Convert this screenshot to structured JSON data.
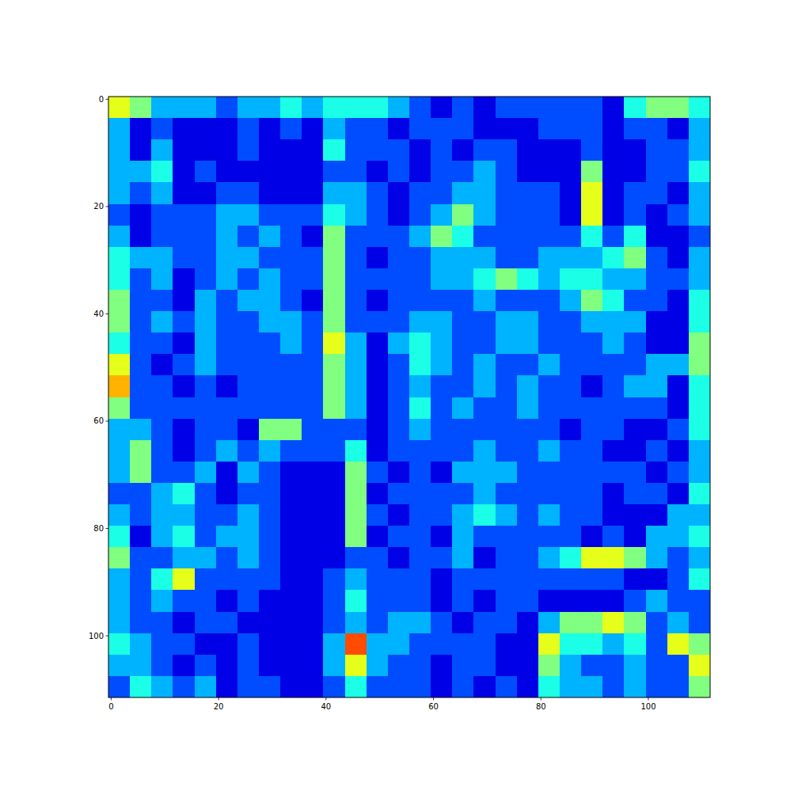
{
  "chart_data": {
    "type": "heatmap",
    "xlim": [
      -0.5,
      111.5
    ],
    "ylim": [
      111.5,
      -0.5
    ],
    "xticks": [
      0,
      20,
      40,
      60,
      80,
      100
    ],
    "yticks": [
      0,
      20,
      40,
      60,
      80,
      100
    ],
    "grid": false,
    "color_range": [
      0,
      10
    ],
    "cells": [
      [
        6,
        5,
        3,
        3,
        3,
        2,
        3,
        3,
        4,
        3,
        4,
        4,
        4,
        3,
        2,
        1,
        2,
        1,
        2,
        2,
        2,
        2,
        2,
        1,
        4,
        5,
        5,
        4
      ],
      [
        3,
        1,
        2,
        1,
        1,
        1,
        2,
        1,
        2,
        1,
        3,
        2,
        2,
        1,
        2,
        2,
        2,
        1,
        1,
        1,
        2,
        2,
        2,
        1,
        2,
        2,
        1,
        3
      ],
      [
        3,
        1,
        3,
        1,
        1,
        1,
        2,
        1,
        1,
        1,
        4,
        2,
        2,
        2,
        1,
        2,
        1,
        2,
        2,
        1,
        1,
        1,
        2,
        1,
        1,
        2,
        2,
        3
      ],
      [
        3,
        3,
        4,
        1,
        2,
        1,
        1,
        1,
        1,
        1,
        2,
        2,
        1,
        2,
        1,
        2,
        2,
        3,
        2,
        1,
        1,
        1,
        5,
        1,
        1,
        2,
        2,
        4
      ],
      [
        3,
        2,
        3,
        1,
        1,
        2,
        2,
        1,
        1,
        1,
        3,
        3,
        2,
        1,
        2,
        2,
        3,
        3,
        2,
        2,
        2,
        1,
        6,
        1,
        2,
        2,
        1,
        3
      ],
      [
        2,
        1,
        2,
        2,
        2,
        3,
        3,
        2,
        2,
        2,
        4,
        3,
        2,
        1,
        2,
        3,
        5,
        3,
        2,
        2,
        2,
        1,
        6,
        1,
        2,
        1,
        2,
        3
      ],
      [
        3,
        1,
        2,
        2,
        2,
        3,
        2,
        3,
        2,
        1,
        5,
        2,
        2,
        2,
        3,
        5,
        4,
        2,
        2,
        2,
        2,
        2,
        4,
        2,
        4,
        1,
        1,
        2
      ],
      [
        4,
        3,
        3,
        2,
        2,
        3,
        3,
        2,
        2,
        2,
        5,
        2,
        1,
        2,
        2,
        3,
        3,
        3,
        2,
        2,
        3,
        3,
        3,
        4,
        5,
        2,
        1,
        3
      ],
      [
        4,
        2,
        3,
        1,
        2,
        3,
        2,
        3,
        2,
        2,
        5,
        2,
        2,
        2,
        2,
        3,
        3,
        4,
        5,
        4,
        3,
        4,
        4,
        3,
        3,
        2,
        2,
        3
      ],
      [
        5,
        2,
        2,
        1,
        3,
        2,
        3,
        3,
        2,
        1,
        5,
        2,
        1,
        2,
        2,
        2,
        2,
        3,
        2,
        2,
        2,
        3,
        5,
        4,
        2,
        2,
        1,
        4
      ],
      [
        5,
        2,
        3,
        2,
        3,
        2,
        2,
        3,
        3,
        2,
        5,
        2,
        2,
        2,
        3,
        3,
        2,
        2,
        3,
        3,
        2,
        2,
        3,
        3,
        3,
        1,
        1,
        4
      ],
      [
        4,
        2,
        2,
        1,
        3,
        2,
        2,
        2,
        3,
        2,
        6,
        3,
        1,
        3,
        4,
        3,
        2,
        2,
        3,
        3,
        2,
        2,
        2,
        3,
        2,
        1,
        1,
        5
      ],
      [
        6,
        2,
        1,
        2,
        3,
        2,
        2,
        2,
        2,
        2,
        5,
        3,
        1,
        2,
        4,
        3,
        2,
        3,
        2,
        2,
        3,
        2,
        2,
        2,
        2,
        3,
        3,
        5
      ],
      [
        7,
        2,
        2,
        1,
        2,
        1,
        2,
        2,
        2,
        2,
        5,
        3,
        1,
        2,
        3,
        2,
        2,
        3,
        2,
        3,
        2,
        2,
        1,
        2,
        3,
        3,
        1,
        4
      ],
      [
        5,
        2,
        2,
        2,
        2,
        2,
        2,
        2,
        2,
        2,
        5,
        3,
        1,
        2,
        4,
        2,
        3,
        2,
        2,
        3,
        2,
        2,
        2,
        2,
        2,
        2,
        1,
        4
      ],
      [
        3,
        3,
        2,
        1,
        2,
        2,
        1,
        5,
        5,
        2,
        2,
        2,
        1,
        2,
        3,
        2,
        2,
        2,
        2,
        2,
        2,
        1,
        2,
        2,
        1,
        1,
        2,
        4
      ],
      [
        3,
        5,
        2,
        1,
        2,
        3,
        2,
        3,
        2,
        2,
        2,
        4,
        1,
        2,
        2,
        2,
        2,
        3,
        2,
        2,
        3,
        2,
        2,
        1,
        1,
        2,
        1,
        3
      ],
      [
        3,
        5,
        2,
        2,
        3,
        1,
        3,
        2,
        1,
        1,
        1,
        5,
        2,
        1,
        2,
        1,
        3,
        3,
        3,
        2,
        2,
        2,
        2,
        2,
        2,
        1,
        2,
        3
      ],
      [
        2,
        2,
        3,
        4,
        2,
        1,
        2,
        2,
        1,
        1,
        1,
        5,
        1,
        2,
        2,
        2,
        2,
        3,
        2,
        2,
        2,
        2,
        2,
        1,
        2,
        2,
        1,
        4
      ],
      [
        3,
        2,
        3,
        3,
        2,
        2,
        3,
        2,
        1,
        1,
        1,
        5,
        2,
        1,
        2,
        2,
        3,
        4,
        3,
        2,
        3,
        2,
        2,
        1,
        1,
        1,
        3,
        3
      ],
      [
        4,
        1,
        3,
        4,
        2,
        3,
        3,
        2,
        1,
        1,
        1,
        5,
        1,
        2,
        2,
        1,
        3,
        2,
        2,
        2,
        2,
        2,
        1,
        2,
        1,
        3,
        3,
        4
      ],
      [
        5,
        2,
        2,
        3,
        3,
        2,
        3,
        2,
        1,
        1,
        1,
        2,
        2,
        1,
        2,
        2,
        3,
        1,
        2,
        2,
        3,
        4,
        6,
        6,
        5,
        3,
        2,
        3
      ],
      [
        3,
        2,
        4,
        6,
        2,
        2,
        2,
        2,
        1,
        1,
        2,
        3,
        2,
        2,
        2,
        1,
        2,
        2,
        2,
        2,
        2,
        2,
        2,
        2,
        1,
        1,
        2,
        4
      ],
      [
        3,
        2,
        3,
        2,
        2,
        1,
        2,
        1,
        1,
        1,
        2,
        4,
        2,
        2,
        2,
        1,
        2,
        1,
        2,
        2,
        1,
        1,
        1,
        1,
        2,
        3,
        2,
        2
      ],
      [
        3,
        2,
        2,
        1,
        2,
        2,
        1,
        1,
        1,
        1,
        2,
        3,
        2,
        3,
        3,
        2,
        1,
        2,
        2,
        1,
        3,
        5,
        5,
        6,
        5,
        2,
        3,
        2
      ],
      [
        4,
        3,
        2,
        2,
        1,
        1,
        2,
        1,
        1,
        1,
        3,
        8,
        3,
        3,
        2,
        2,
        2,
        2,
        1,
        1,
        6,
        4,
        4,
        3,
        4,
        2,
        6,
        5
      ],
      [
        3,
        3,
        2,
        1,
        2,
        1,
        2,
        1,
        1,
        1,
        3,
        6,
        3,
        2,
        2,
        1,
        2,
        2,
        1,
        1,
        5,
        3,
        2,
        2,
        3,
        2,
        2,
        6
      ],
      [
        2,
        4,
        3,
        2,
        3,
        1,
        2,
        2,
        1,
        1,
        2,
        4,
        2,
        2,
        2,
        1,
        2,
        1,
        2,
        1,
        4,
        3,
        3,
        2,
        3,
        2,
        2,
        5
      ]
    ]
  }
}
